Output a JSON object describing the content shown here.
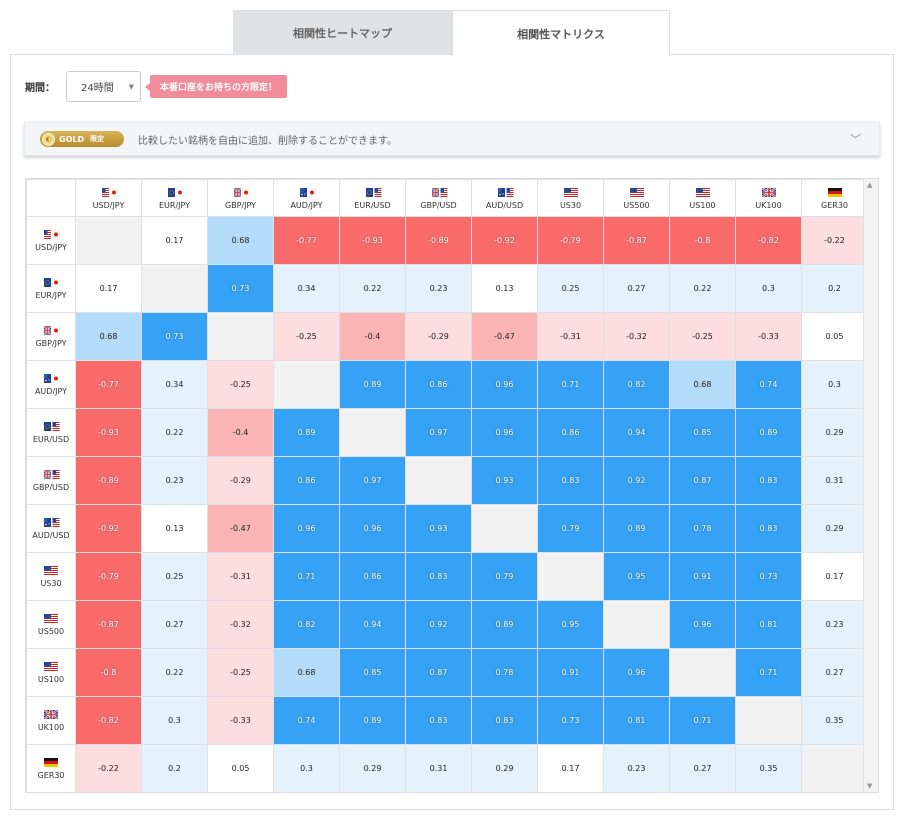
{
  "tabs": [
    {
      "label": "相関性ヒートマップ",
      "active": false
    },
    {
      "label": "相関性マトリクス",
      "active": true
    }
  ],
  "period": {
    "label": "期間：",
    "value": "24時間"
  },
  "promo": {
    "label": "本番口座をお持ちの方限定！"
  },
  "gold": {
    "badge": "GOLD",
    "badge_sub": "限定",
    "text": "比較したい銘柄を自由に追加、削除することができます。"
  },
  "colors": {
    "strong_pos": "#35a2f5",
    "mid_pos": "#b3dcfa",
    "weak_pos": "#e5f2fc",
    "neutral": "#ffffff",
    "weak_neg": "#fddddd",
    "mid_neg": "#fbb4b4",
    "strong_neg": "#f96b6b",
    "diagonal": "#f2f2f2"
  },
  "instruments": [
    {
      "label": "USD/JPY",
      "flag": "us-jp"
    },
    {
      "label": "EUR/JPY",
      "flag": "eu-jp"
    },
    {
      "label": "GBP/JPY",
      "flag": "gb-jp"
    },
    {
      "label": "AUD/JPY",
      "flag": "au-jp"
    },
    {
      "label": "EUR/USD",
      "flag": "eu-us"
    },
    {
      "label": "GBP/USD",
      "flag": "gb-us"
    },
    {
      "label": "AUD/USD",
      "flag": "au-us"
    },
    {
      "label": "US30",
      "flag": "us"
    },
    {
      "label": "US500",
      "flag": "us"
    },
    {
      "label": "US100",
      "flag": "us"
    },
    {
      "label": "UK100",
      "flag": "gb"
    },
    {
      "label": "GER30",
      "flag": "de"
    }
  ],
  "matrix": [
    [
      null,
      "0.17",
      "0.68",
      "-0.77",
      "-0.93",
      "-0.89",
      "-0.92",
      "-0.79",
      "-0.87",
      "-0.8",
      "-0.82",
      "-0.22"
    ],
    [
      "0.17",
      null,
      "0.73",
      "0.34",
      "0.22",
      "0.23",
      "0.13",
      "0.25",
      "0.27",
      "0.22",
      "0.3",
      "0.2"
    ],
    [
      "0.68",
      "0.73",
      null,
      "-0.25",
      "-0.4",
      "-0.29",
      "-0.47",
      "-0.31",
      "-0.32",
      "-0.25",
      "-0.33",
      "0.05"
    ],
    [
      "-0.77",
      "0.34",
      "-0.25",
      null,
      "0.89",
      "0.86",
      "0.96",
      "0.71",
      "0.82",
      "0.68",
      "0.74",
      "0.3"
    ],
    [
      "-0.93",
      "0.22",
      "-0.4",
      "0.89",
      null,
      "0.97",
      "0.96",
      "0.86",
      "0.94",
      "0.85",
      "0.89",
      "0.29"
    ],
    [
      "-0.89",
      "0.23",
      "-0.29",
      "0.86",
      "0.97",
      null,
      "0.93",
      "0.83",
      "0.92",
      "0.87",
      "0.83",
      "0.31"
    ],
    [
      "-0.92",
      "0.13",
      "-0.47",
      "0.96",
      "0.96",
      "0.93",
      null,
      "0.79",
      "0.89",
      "0.78",
      "0.83",
      "0.29"
    ],
    [
      "-0.79",
      "0.25",
      "-0.31",
      "0.71",
      "0.86",
      "0.83",
      "0.79",
      null,
      "0.95",
      "0.91",
      "0.73",
      "0.17"
    ],
    [
      "-0.87",
      "0.27",
      "-0.32",
      "0.82",
      "0.94",
      "0.92",
      "0.89",
      "0.95",
      null,
      "0.96",
      "0.81",
      "0.23"
    ],
    [
      "-0.8",
      "0.22",
      "-0.25",
      "0.68",
      "0.85",
      "0.87",
      "0.78",
      "0.91",
      "0.96",
      null,
      "0.71",
      "0.27"
    ],
    [
      "-0.82",
      "0.3",
      "-0.33",
      "0.74",
      "0.89",
      "0.83",
      "0.83",
      "0.73",
      "0.81",
      "0.71",
      null,
      "0.35"
    ],
    [
      "-0.22",
      "0.2",
      "0.05",
      "0.3",
      "0.29",
      "0.31",
      "0.29",
      "0.17",
      "0.23",
      "0.27",
      "0.35",
      null
    ]
  ]
}
